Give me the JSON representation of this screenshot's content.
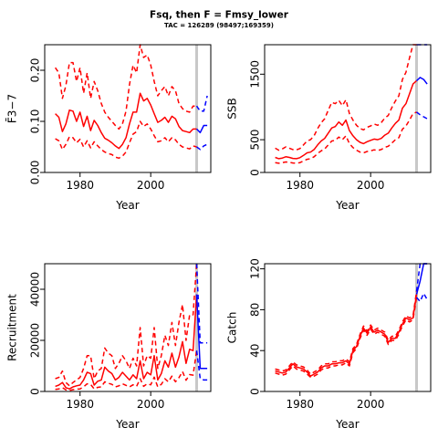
{
  "title": "Fsq, then F = Fmsy_lower",
  "subtitle": "TAC = 126289 (98497;169359)",
  "colors": {
    "historical": "#ff0000",
    "projection": "#0000ff",
    "marker": "#c8c8c8"
  },
  "chart_data": [
    {
      "type": "line",
      "xlabel": "Year",
      "ylabel": "F̄3−7",
      "xlim": [
        1970,
        2017
      ],
      "ylim": [
        0,
        0.25
      ],
      "xticks": [
        1980,
        2000
      ],
      "yticks": [
        0.0,
        0.1,
        0.2
      ],
      "ytick_labels": [
        "0.00",
        "0.10",
        "0.20"
      ],
      "marker_year": 2013,
      "historical": {
        "x": [
          1973,
          1974,
          1975,
          1976,
          1977,
          1978,
          1979,
          1980,
          1981,
          1982,
          1983,
          1984,
          1985,
          1986,
          1987,
          1988,
          1989,
          1990,
          1991,
          1992,
          1993,
          1994,
          1995,
          1996,
          1997,
          1998,
          1999,
          2000,
          2001,
          2002,
          2003,
          2004,
          2005,
          2006,
          2007,
          2008,
          2009,
          2010,
          2011,
          2012,
          2013
        ],
        "mid": [
          0.115,
          0.108,
          0.08,
          0.095,
          0.122,
          0.12,
          0.1,
          0.118,
          0.09,
          0.11,
          0.082,
          0.102,
          0.092,
          0.078,
          0.067,
          0.063,
          0.058,
          0.052,
          0.047,
          0.055,
          0.068,
          0.095,
          0.118,
          0.118,
          0.155,
          0.14,
          0.145,
          0.132,
          0.115,
          0.098,
          0.102,
          0.108,
          0.098,
          0.11,
          0.105,
          0.09,
          0.082,
          0.08,
          0.078,
          0.085,
          0.085
        ],
        "lower": [
          0.066,
          0.062,
          0.045,
          0.055,
          0.07,
          0.068,
          0.058,
          0.065,
          0.05,
          0.062,
          0.048,
          0.06,
          0.052,
          0.045,
          0.04,
          0.037,
          0.035,
          0.03,
          0.028,
          0.032,
          0.04,
          0.058,
          0.075,
          0.08,
          0.1,
          0.09,
          0.095,
          0.085,
          0.072,
          0.06,
          0.062,
          0.068,
          0.06,
          0.068,
          0.064,
          0.055,
          0.05,
          0.048,
          0.046,
          0.052,
          0.05
        ],
        "upper": [
          0.205,
          0.195,
          0.145,
          0.17,
          0.215,
          0.215,
          0.178,
          0.205,
          0.155,
          0.195,
          0.145,
          0.178,
          0.16,
          0.135,
          0.118,
          0.108,
          0.1,
          0.092,
          0.085,
          0.095,
          0.12,
          0.172,
          0.21,
          0.195,
          0.25,
          0.225,
          0.23,
          0.21,
          0.178,
          0.15,
          0.16,
          0.168,
          0.15,
          0.168,
          0.16,
          0.135,
          0.125,
          0.12,
          0.118,
          0.13,
          0.13
        ]
      },
      "projection": {
        "x": [
          2013,
          2014,
          2015,
          2016
        ],
        "mid": [
          0.085,
          0.078,
          0.092,
          0.092
        ],
        "lower": [
          0.05,
          0.045,
          0.052,
          0.055
        ],
        "upper": [
          0.13,
          0.12,
          0.12,
          0.15
        ]
      }
    },
    {
      "type": "line",
      "xlabel": "Year",
      "ylabel": "SSB",
      "xlim": [
        1970,
        2017
      ],
      "ylim": [
        0,
        1950
      ],
      "xticks": [
        1980,
        2000
      ],
      "yticks": [
        0,
        500,
        1500
      ],
      "ytick_labels": [
        "0",
        "500",
        "1500"
      ],
      "marker_year": 2013,
      "historical": {
        "x": [
          1973,
          1974,
          1975,
          1976,
          1977,
          1978,
          1979,
          1980,
          1981,
          1982,
          1983,
          1984,
          1985,
          1986,
          1987,
          1988,
          1989,
          1990,
          1991,
          1992,
          1993,
          1994,
          1995,
          1996,
          1997,
          1998,
          1999,
          2000,
          2001,
          2002,
          2003,
          2004,
          2005,
          2006,
          2007,
          2008,
          2009,
          2010,
          2011,
          2012,
          2013
        ],
        "mid": [
          230,
          210,
          220,
          240,
          230,
          215,
          210,
          225,
          260,
          300,
          310,
          350,
          420,
          480,
          520,
          600,
          680,
          700,
          770,
          720,
          800,
          640,
          560,
          500,
          460,
          440,
          470,
          490,
          510,
          500,
          520,
          570,
          600,
          680,
          750,
          800,
          980,
          1050,
          1200,
          1350,
          1400
        ],
        "lower": [
          150,
          140,
          150,
          160,
          155,
          145,
          140,
          150,
          175,
          200,
          210,
          240,
          290,
          330,
          360,
          420,
          480,
          490,
          540,
          500,
          560,
          440,
          380,
          340,
          310,
          300,
          320,
          330,
          345,
          335,
          350,
          385,
          400,
          450,
          500,
          530,
          660,
          710,
          800,
          900,
          920
        ],
        "upper": [
          370,
          340,
          360,
          390,
          370,
          350,
          345,
          365,
          420,
          480,
          500,
          560,
          670,
          760,
          820,
          950,
          1070,
          1050,
          1100,
          1020,
          1110,
          900,
          800,
          720,
          670,
          650,
          690,
          710,
          740,
          720,
          760,
          830,
          870,
          990,
          1090,
          1170,
          1420,
          1530,
          1750,
          1950,
          1950
        ]
      },
      "projection": {
        "x": [
          2013,
          2014,
          2015,
          2016
        ],
        "mid": [
          1400,
          1450,
          1420,
          1350
        ],
        "lower": [
          920,
          880,
          850,
          820
        ],
        "upper": [
          1950,
          1950,
          1950,
          1950
        ]
      }
    },
    {
      "type": "line",
      "xlabel": "Year",
      "ylabel": "Recruitment",
      "xlim": [
        1970,
        2017
      ],
      "ylim": [
        0,
        50000
      ],
      "xticks": [
        1980,
        2000
      ],
      "yticks": [
        0,
        20000,
        40000
      ],
      "ytick_labels": [
        "0",
        "20000",
        "40000"
      ],
      "marker_year": 2013,
      "historical": {
        "x": [
          1973,
          1974,
          1975,
          1976,
          1977,
          1978,
          1979,
          1980,
          1981,
          1982,
          1983,
          1984,
          1985,
          1986,
          1987,
          1988,
          1989,
          1990,
          1991,
          1992,
          1993,
          1994,
          1995,
          1996,
          1997,
          1998,
          1999,
          2000,
          2001,
          2002,
          2003,
          2004,
          2005,
          2006,
          2007,
          2008,
          2009,
          2010,
          2011,
          2012,
          2013
        ],
        "mid": [
          2000,
          2500,
          3500,
          1500,
          1000,
          1800,
          2200,
          2500,
          4500,
          7500,
          7000,
          2500,
          4000,
          4500,
          9500,
          8000,
          7000,
          4500,
          5500,
          7500,
          6000,
          4500,
          6500,
          5000,
          12000,
          5000,
          7500,
          6500,
          14000,
          4500,
          7000,
          12000,
          9500,
          15000,
          9500,
          13500,
          19500,
          11000,
          16500,
          16000,
          38000
        ],
        "lower": [
          800,
          1000,
          1500,
          600,
          400,
          700,
          900,
          1000,
          1800,
          3000,
          2800,
          1000,
          1600,
          1800,
          3800,
          3200,
          2800,
          1800,
          2200,
          3000,
          2400,
          1800,
          2600,
          2000,
          5000,
          2000,
          3000,
          2600,
          5600,
          1800,
          2800,
          5000,
          3800,
          6000,
          3800,
          5400,
          7800,
          4400,
          6600,
          6400,
          16000
        ],
        "upper": [
          5000,
          5500,
          8000,
          3500,
          2200,
          3500,
          4500,
          5500,
          9000,
          14000,
          14000,
          5000,
          8000,
          9000,
          17000,
          15000,
          14000,
          9000,
          11000,
          14000,
          12000,
          9000,
          13000,
          10000,
          25000,
          10000,
          14000,
          13000,
          25000,
          9000,
          14000,
          22000,
          18000,
          27000,
          18000,
          27000,
          34000,
          20000,
          30000,
          30000,
          50000
        ]
      },
      "projection": {
        "x": [
          2013,
          2014,
          2015,
          2016
        ],
        "mid": [
          38000,
          9000,
          9000,
          9000
        ],
        "lower": [
          16000,
          5000,
          4500,
          4500
        ],
        "upper": [
          50000,
          19000,
          19000,
          19000
        ]
      }
    },
    {
      "type": "line",
      "xlabel": "Year",
      "ylabel": "Catch",
      "xlim": [
        1970,
        2017
      ],
      "ylim": [
        0,
        125
      ],
      "xticks": [
        1980,
        2000
      ],
      "yticks": [
        0,
        40,
        80,
        120
      ],
      "ytick_labels": [
        "0",
        "40",
        "80",
        "120"
      ],
      "marker_year": 2013,
      "historical": {
        "x": [
          1973,
          1974,
          1975,
          1976,
          1977,
          1978,
          1979,
          1980,
          1981,
          1982,
          1983,
          1984,
          1985,
          1986,
          1987,
          1988,
          1989,
          1990,
          1991,
          1992,
          1993,
          1994,
          1995,
          1996,
          1997,
          1998,
          1999,
          2000,
          2001,
          2002,
          2003,
          2004,
          2005,
          2006,
          2007,
          2008,
          2009,
          2010,
          2011,
          2012,
          2013
        ],
        "mid": [
          20,
          19,
          18,
          19,
          23,
          27,
          24,
          23,
          22,
          19,
          15,
          17,
          19,
          23,
          25,
          25,
          27,
          27,
          28,
          28,
          30,
          27,
          40,
          44,
          54,
          62,
          57,
          63,
          58,
          60,
          58,
          56,
          48,
          52,
          52,
          58,
          66,
          72,
          70,
          72,
          95
        ],
        "lower": [
          18,
          17,
          16,
          17,
          21,
          25,
          22,
          21,
          20,
          17,
          14,
          15,
          17,
          21,
          23,
          23,
          25,
          25,
          26,
          26,
          28,
          25,
          38,
          42,
          52,
          60,
          55,
          61,
          56,
          58,
          56,
          54,
          46,
          50,
          50,
          56,
          64,
          70,
          68,
          70,
          92
        ],
        "upper": [
          22,
          21,
          20,
          21,
          25,
          29,
          26,
          25,
          24,
          21,
          17,
          19,
          21,
          25,
          27,
          27,
          29,
          29,
          30,
          30,
          32,
          29,
          42,
          46,
          56,
          64,
          59,
          65,
          60,
          62,
          60,
          58,
          50,
          54,
          54,
          60,
          68,
          74,
          72,
          74,
          98
        ]
      },
      "projection": {
        "x": [
          2013,
          2014,
          2015,
          2016
        ],
        "mid": [
          95,
          108,
          125,
          125
        ],
        "lower": [
          92,
          88,
          96,
          90
        ],
        "upper": [
          98,
          125,
          125,
          125
        ]
      }
    }
  ]
}
